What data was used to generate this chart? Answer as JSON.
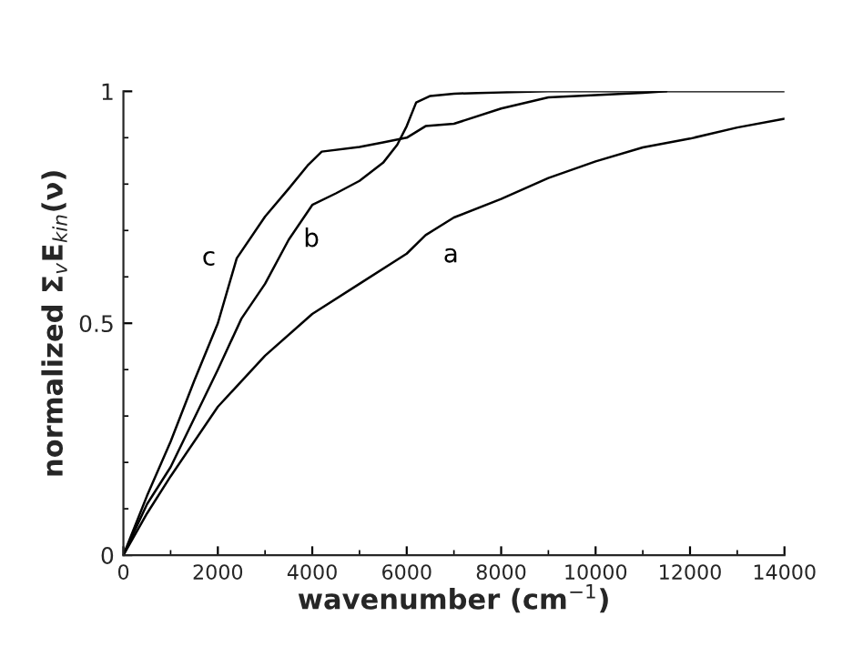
{
  "chart_data": {
    "type": "line",
    "xlabel": "wavenumber (cm$^{−1}$)",
    "ylabel": "normalized Σ$_{v}$E$_{kin}$(ν)",
    "xlim": [
      0,
      14000
    ],
    "ylim": [
      0,
      1
    ],
    "xticks": [
      0,
      2000,
      4000,
      6000,
      8000,
      10000,
      12000,
      14000
    ],
    "yticks": [
      0,
      0.5,
      1
    ],
    "grid": false,
    "legend": false,
    "line_style": "solid",
    "marker": "none",
    "series": [
      {
        "name": "a",
        "color": "#000000",
        "x": [
          0,
          500,
          1000,
          2000,
          3000,
          4000,
          5000,
          6000,
          6400,
          7000,
          8000,
          9000,
          10000,
          11000,
          12000,
          13000,
          14000
        ],
        "values": [
          0,
          0.09,
          0.17,
          0.32,
          0.43,
          0.52,
          0.585,
          0.65,
          0.69,
          0.728,
          0.768,
          0.813,
          0.849,
          0.879,
          0.898,
          0.922,
          0.941
        ]
      },
      {
        "name": "b",
        "color": "#000000",
        "x": [
          0,
          500,
          1000,
          2000,
          2500,
          3000,
          3500,
          4000,
          4500,
          5000,
          5500,
          5800,
          6000,
          6200,
          6500,
          7000,
          8000,
          9000,
          14000
        ],
        "values": [
          0,
          0.11,
          0.19,
          0.4,
          0.51,
          0.585,
          0.68,
          0.755,
          0.78,
          0.807,
          0.846,
          0.885,
          0.925,
          0.976,
          0.99,
          0.995,
          0.998,
          1.0,
          1.0
        ]
      },
      {
        "name": "c",
        "color": "#000000",
        "x": [
          0,
          500,
          1000,
          1500,
          2000,
          2400,
          3000,
          3500,
          3900,
          4200,
          5000,
          5500,
          6000,
          6400,
          7000,
          8000,
          9000,
          10000,
          11000,
          11500
        ],
        "values": [
          0,
          0.128,
          0.245,
          0.376,
          0.5,
          0.64,
          0.73,
          0.79,
          0.84,
          0.87,
          0.88,
          0.89,
          0.9,
          0.925,
          0.93,
          0.963,
          0.987,
          0.992,
          0.997,
          1.0
        ]
      }
    ]
  }
}
